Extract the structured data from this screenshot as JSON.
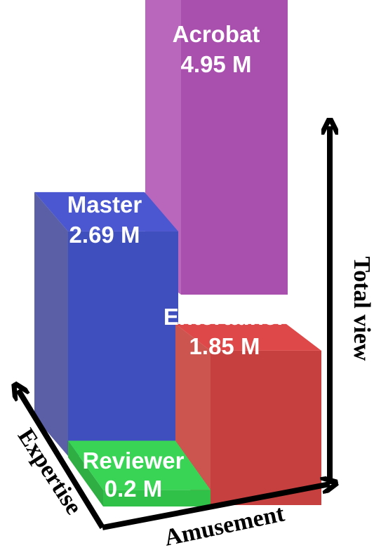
{
  "chart_data": {
    "type": "bar",
    "categories": [
      "Acrobat",
      "Master",
      "Entertainer",
      "Reviewer"
    ],
    "values": [
      4.95,
      2.69,
      1.85,
      0.2
    ],
    "value_labels": [
      "4.95 M",
      "2.69 M",
      "1.85 M",
      "0.2 M"
    ],
    "unit": "M",
    "axes": {
      "vertical": "Total view",
      "depth": "Expertise",
      "horizontal": "Amusement"
    },
    "colors": {
      "Acrobat": {
        "front": "#a94fae",
        "side": "#b867bc",
        "top": "#c55cc8"
      },
      "Master": {
        "front": "#3f4fbd",
        "side": "#5a5fa6",
        "top": "#4a57d0"
      },
      "Entertainer": {
        "front": "#c5403f",
        "side": "#cc5550",
        "top": "#de4848"
      },
      "Reviewer": {
        "front": "#30c248",
        "side": "#2fae43",
        "top": "#39d356"
      }
    }
  }
}
